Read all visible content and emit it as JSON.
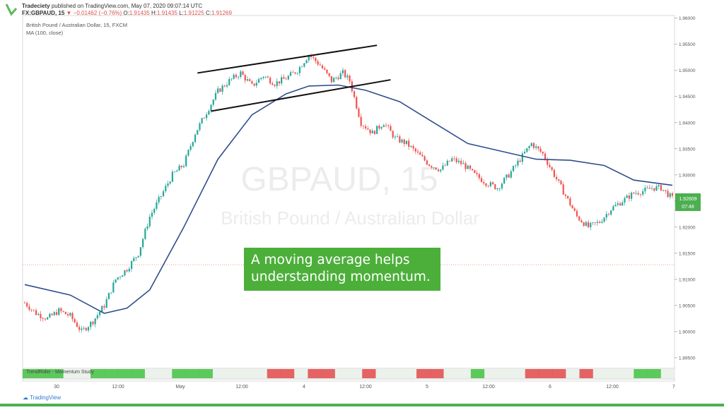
{
  "header": {
    "author": "Tradeciety",
    "published": "published on TradingView.com, May 07, 2020 09:07:14 UTC",
    "symbol": "FX:GBPAUD, 15",
    "change": "▼ −0.01462 (−0.76%)",
    "o_label": "O:",
    "o_value": "1.91435",
    "h_label": "H:",
    "h_value": "1.91435",
    "l_label": "L:",
    "l_value": "1.91225",
    "c_label": "C:",
    "c_value": "1.91269"
  },
  "chart_title": "British Pound / Australian Dollar, 15, FXCM",
  "ma_legend": "MA (100, close)",
  "watermark": {
    "symbol": "GBPAUD, 15",
    "name": "British Pound / Australian Dollar"
  },
  "callout": "A moving average helps understanding momentum.",
  "indicator_label": "TrendRider - Momentum Study",
  "footer_brand": "TradingView",
  "price_badge": {
    "price": "1.92609",
    "time": "07:48"
  },
  "colors": {
    "up": "#26a69a",
    "down": "#ef5350",
    "ma": "#2e4e8c",
    "callout_bg": "#4caf3a",
    "badge": "#4caf50"
  },
  "chart_data": {
    "type": "candlestick",
    "symbol": "GBPAUD",
    "ylim": [
      1.8935,
      1.9605
    ],
    "y_ticks": [
      "1.96000",
      "1.95500",
      "1.95000",
      "1.94500",
      "1.94000",
      "1.93500",
      "1.93000",
      "1.92500",
      "1.92000",
      "1.91500",
      "1.91000",
      "1.90500",
      "1.90000",
      "1.89500"
    ],
    "x_ticks": [
      "30",
      "12:00",
      "May",
      "12:00",
      "4",
      "12:00",
      "5",
      "12:00",
      "6",
      "12:00",
      "7"
    ],
    "close_path": [
      [
        0,
        1.9055
      ],
      [
        5,
        1.9035
      ],
      [
        10,
        1.9025
      ],
      [
        15,
        1.904
      ],
      [
        20,
        1.903
      ],
      [
        25,
        1.9
      ],
      [
        30,
        1.902
      ],
      [
        35,
        1.905
      ],
      [
        40,
        1.91
      ],
      [
        45,
        1.912
      ],
      [
        50,
        1.915
      ],
      [
        55,
        1.922
      ],
      [
        60,
        1.926
      ],
      [
        65,
        1.93
      ],
      [
        70,
        1.932
      ],
      [
        75,
        1.938
      ],
      [
        80,
        1.942
      ],
      [
        85,
        1.946
      ],
      [
        90,
        1.948
      ],
      [
        95,
        1.9495
      ],
      [
        100,
        1.947
      ],
      [
        105,
        1.949
      ],
      [
        110,
        1.9475
      ],
      [
        115,
        1.9485
      ],
      [
        120,
        1.95
      ],
      [
        125,
        1.953
      ],
      [
        130,
        1.951
      ],
      [
        135,
        1.948
      ],
      [
        140,
        1.9495
      ],
      [
        143,
        1.948
      ],
      [
        148,
        1.94
      ],
      [
        153,
        1.938
      ],
      [
        158,
        1.94
      ],
      [
        163,
        1.937
      ],
      [
        168,
        1.936
      ],
      [
        173,
        1.934
      ],
      [
        178,
        1.932
      ],
      [
        183,
        1.931
      ],
      [
        188,
        1.933
      ],
      [
        193,
        1.932
      ],
      [
        198,
        1.93
      ],
      [
        203,
        1.9285
      ],
      [
        208,
        1.9275
      ],
      [
        213,
        1.93
      ],
      [
        218,
        1.933
      ],
      [
        223,
        1.936
      ],
      [
        228,
        1.934
      ],
      [
        233,
        1.93
      ],
      [
        238,
        1.926
      ],
      [
        243,
        1.922
      ],
      [
        248,
        1.92
      ],
      [
        253,
        1.921
      ],
      [
        258,
        1.9235
      ],
      [
        263,
        1.925
      ],
      [
        268,
        1.9265
      ],
      [
        273,
        1.927
      ],
      [
        276,
        1.9275
      ],
      [
        280,
        1.9275
      ],
      [
        285,
        1.9255
      ]
    ],
    "ma_path": [
      [
        0,
        1.909
      ],
      [
        20,
        1.907
      ],
      [
        35,
        1.9035
      ],
      [
        45,
        1.9045
      ],
      [
        55,
        1.908
      ],
      [
        70,
        1.92
      ],
      [
        85,
        1.933
      ],
      [
        100,
        1.9415
      ],
      [
        115,
        1.9455
      ],
      [
        125,
        1.947
      ],
      [
        138,
        1.9472
      ],
      [
        150,
        1.9462
      ],
      [
        165,
        1.944
      ],
      [
        180,
        1.94
      ],
      [
        195,
        1.936
      ],
      [
        210,
        1.9345
      ],
      [
        225,
        1.933
      ],
      [
        240,
        1.9328
      ],
      [
        255,
        1.9318
      ],
      [
        268,
        1.929
      ],
      [
        285,
        1.928
      ]
    ],
    "trendlines": [
      {
        "x1": 76,
        "y1": 1.9495,
        "x2": 155,
        "y2": 1.9548
      },
      {
        "x1": 82,
        "y1": 1.9422,
        "x2": 161,
        "y2": 1.9482
      }
    ],
    "hline": 1.9128,
    "momentum_colors": [
      "green",
      "green",
      "green",
      "light",
      "light",
      "green",
      "green",
      "green",
      "green",
      "light",
      "light",
      "green",
      "green",
      "green",
      "light",
      "light",
      "light",
      "light",
      "red",
      "red",
      "light",
      "red",
      "red",
      "light",
      "light",
      "red",
      "light",
      "light",
      "light",
      "red",
      "red",
      "light",
      "light",
      "green",
      "light",
      "light",
      "light",
      "red",
      "red",
      "red",
      "light",
      "red",
      "light",
      "light",
      "light",
      "green",
      "green",
      "light"
    ]
  }
}
